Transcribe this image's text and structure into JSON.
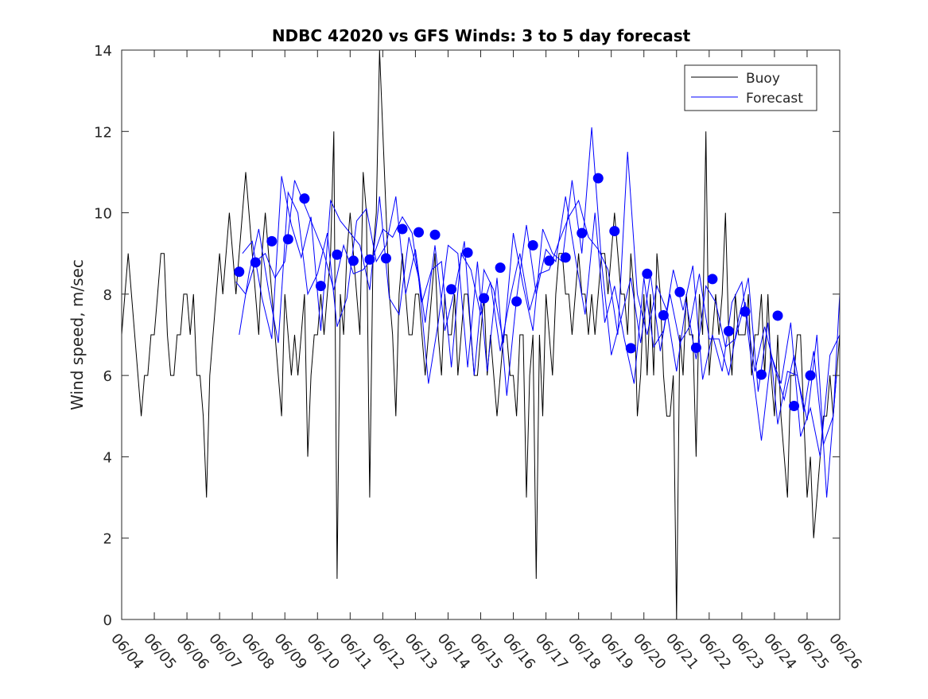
{
  "chart_data": {
    "type": "line",
    "title": "NDBC 42020 vs GFS Winds: 3 to 5 day forecast",
    "xlabel": "",
    "ylabel": "Wind speed, m/sec",
    "ylim": [
      0,
      14
    ],
    "yticks": [
      0,
      2,
      4,
      6,
      8,
      10,
      12,
      14
    ],
    "xlim": [
      "06/04",
      "06/26"
    ],
    "xticks": [
      "06/04",
      "06/05",
      "06/06",
      "06/07",
      "06/08",
      "06/09",
      "06/10",
      "06/11",
      "06/12",
      "06/13",
      "06/14",
      "06/15",
      "06/16",
      "06/17",
      "06/18",
      "06/19",
      "06/20",
      "06/21",
      "06/22",
      "06/23",
      "06/24",
      "06/25",
      "06/26"
    ],
    "grid": false,
    "legend": {
      "position": "top-right",
      "entries": [
        "Buoy",
        "Forecast"
      ]
    },
    "colors": {
      "buoy": "#000000",
      "forecast": "#0000ff",
      "axes": "#262626"
    },
    "series": [
      {
        "name": "Buoy",
        "x_days": [
          0.0,
          0.1,
          0.2,
          0.3,
          0.4,
          0.5,
          0.6,
          0.7,
          0.8,
          0.9,
          1.0,
          1.1,
          1.2,
          1.3,
          1.4,
          1.5,
          1.6,
          1.7,
          1.8,
          1.9,
          2.0,
          2.1,
          2.2,
          2.3,
          2.4,
          2.5,
          2.6,
          2.7,
          2.8,
          2.9,
          3.0,
          3.1,
          3.2,
          3.3,
          3.4,
          3.5,
          3.6,
          3.7,
          3.8,
          3.9,
          4.0,
          4.1,
          4.2,
          4.3,
          4.4,
          4.5,
          4.6,
          4.7,
          4.8,
          4.9,
          5.0,
          5.1,
          5.2,
          5.3,
          5.4,
          5.5,
          5.6,
          5.7,
          5.8,
          5.9,
          6.0,
          6.1,
          6.2,
          6.3,
          6.4,
          6.5,
          6.6,
          6.7,
          6.8,
          6.9,
          7.0,
          7.1,
          7.2,
          7.3,
          7.4,
          7.5,
          7.6,
          7.7,
          7.8,
          7.9,
          8.0,
          8.1,
          8.2,
          8.3,
          8.4,
          8.5,
          8.6,
          8.7,
          8.8,
          8.9,
          9.0,
          9.1,
          9.2,
          9.3,
          9.4,
          9.5,
          9.6,
          9.7,
          9.8,
          9.9,
          10.0,
          10.1,
          10.2,
          10.3,
          10.4,
          10.5,
          10.6,
          10.7,
          10.8,
          10.9,
          11.0,
          11.1,
          11.2,
          11.3,
          11.4,
          11.5,
          11.6,
          11.7,
          11.8,
          11.9,
          12.0,
          12.1,
          12.2,
          12.3,
          12.4,
          12.5,
          12.6,
          12.7,
          12.8,
          12.9,
          13.0,
          13.1,
          13.2,
          13.3,
          13.4,
          13.5,
          13.6,
          13.7,
          13.8,
          13.9,
          14.0,
          14.1,
          14.2,
          14.3,
          14.4,
          14.5,
          14.6,
          14.7,
          14.8,
          14.9,
          15.0,
          15.1,
          15.2,
          15.3,
          15.4,
          15.5,
          15.6,
          15.7,
          15.8,
          15.9,
          16.0,
          16.1,
          16.2,
          16.3,
          16.4,
          16.5,
          16.6,
          16.7,
          16.8,
          16.9,
          17.0,
          17.1,
          17.2,
          17.3,
          17.4,
          17.5,
          17.6,
          17.7,
          17.8,
          17.9,
          18.0,
          18.1,
          18.2,
          18.3,
          18.4,
          18.5,
          18.6,
          18.7,
          18.8,
          18.9,
          19.0,
          19.1,
          19.2,
          19.3,
          19.4,
          19.5,
          19.6,
          19.7,
          19.8,
          19.9,
          20.0,
          20.1,
          20.2,
          20.3,
          20.4,
          20.5,
          20.6,
          20.7,
          20.8,
          20.9,
          21.0,
          21.1,
          21.2,
          21.3,
          21.4,
          21.5,
          21.6,
          21.7,
          21.8,
          21.9,
          22.0
        ],
        "values": [
          7,
          8,
          9,
          8,
          7,
          6,
          5,
          6,
          6,
          7,
          7,
          8,
          9,
          9,
          7,
          6,
          6,
          7,
          7,
          8,
          8,
          7,
          8,
          6,
          6,
          5,
          3,
          6,
          7,
          8,
          9,
          8,
          9,
          10,
          9,
          8,
          9,
          10,
          11,
          10,
          9,
          8,
          7,
          9,
          10,
          9,
          8,
          7,
          6,
          5,
          8,
          7,
          6,
          7,
          6,
          7,
          8,
          4,
          6,
          7,
          7,
          8,
          7,
          8,
          9,
          12,
          1,
          8,
          7,
          9,
          10,
          9,
          8,
          7,
          11,
          10,
          3,
          9,
          10,
          14,
          12,
          10,
          8,
          7,
          5,
          8,
          9,
          8,
          7,
          7,
          8,
          8,
          7,
          6,
          7,
          8,
          9,
          7,
          6,
          8,
          7,
          7,
          8,
          6,
          7,
          8,
          8,
          7,
          6,
          6,
          7,
          8,
          6,
          7,
          6,
          5,
          6,
          7,
          7,
          6,
          6,
          5,
          7,
          7,
          3,
          6,
          7,
          1,
          7,
          5,
          8,
          7,
          6,
          8,
          9,
          9,
          8,
          8,
          7,
          8,
          9,
          8,
          8,
          7,
          8,
          7,
          8,
          9,
          9,
          8,
          9,
          10,
          9,
          8,
          8,
          7,
          9,
          8,
          5,
          6,
          8,
          6,
          8,
          6,
          9,
          8,
          6,
          5,
          5,
          6,
          0,
          7,
          6,
          8,
          7,
          7,
          4,
          8,
          7,
          12,
          6,
          7,
          8,
          7,
          8,
          10,
          7,
          6,
          8,
          7,
          7,
          7,
          8,
          6,
          7,
          7,
          8,
          6,
          8,
          6,
          5,
          7,
          5,
          4,
          3,
          6,
          6,
          7,
          7,
          5,
          3,
          4,
          2,
          3,
          4,
          5,
          5,
          6,
          5,
          6,
          7
        ]
      },
      {
        "name": "Forecast",
        "x_days": [
          3.5,
          3.8,
          4.1,
          4.4,
          4.7,
          5.0,
          5.3,
          5.6,
          5.9,
          6.2,
          6.5,
          6.8,
          7.1,
          7.4,
          7.7,
          8.0,
          8.3,
          8.6,
          8.9,
          9.2,
          9.5,
          9.8,
          10.1,
          10.4,
          10.7,
          11.0,
          11.3,
          11.6,
          11.9,
          12.2,
          12.5,
          12.8,
          13.1,
          13.4,
          13.7,
          14.0,
          14.3,
          14.6,
          14.9,
          15.2,
          15.5,
          15.8,
          16.1,
          16.4,
          16.7,
          17.0,
          17.3,
          17.6,
          17.9,
          18.2,
          18.5,
          18.8,
          19.1,
          19.4,
          19.7,
          20.0,
          20.3,
          20.6,
          20.9,
          21.2,
          21.5,
          21.8,
          22.0
        ],
        "values": [
          8.3,
          8.0,
          8.8,
          9.0,
          8.4,
          8.8,
          10.8,
          10.2,
          9.6,
          9.0,
          8.1,
          9.2,
          8.5,
          8.6,
          8.9,
          9.6,
          9.4,
          9.9,
          9.5,
          7.8,
          8.6,
          8.8,
          6.2,
          9.0,
          8.6,
          7.5,
          8.3,
          6.6,
          7.9,
          9.0,
          7.6,
          8.5,
          8.6,
          9.3,
          9.9,
          10.3,
          9.4,
          9.1,
          8.6,
          7.0,
          11.5,
          8.0,
          7.0,
          8.2,
          7.6,
          6.1,
          7.8,
          6.4,
          8.2,
          7.8,
          6.7,
          6.9,
          7.8,
          6.1,
          7.2,
          6.2,
          5.4,
          6.5,
          5.1,
          6.6,
          4.3,
          5.0,
          8.0
        ]
      },
      {
        "name": "",
        "x_days": [
          3.6,
          3.9,
          4.2,
          4.5,
          4.8,
          5.1,
          5.4,
          5.7,
          6.0,
          6.3,
          6.6,
          6.9,
          7.2,
          7.5,
          7.8,
          8.1,
          8.4,
          8.7,
          9.0,
          9.3,
          9.6,
          9.9,
          10.2,
          10.5,
          10.8,
          11.1,
          11.4,
          11.7,
          12.0,
          12.3,
          12.6,
          12.9,
          13.2,
          13.5,
          13.8,
          14.1,
          14.4,
          14.7,
          15.0,
          15.3,
          15.6,
          15.9,
          16.2,
          16.5,
          16.8,
          17.1,
          17.4,
          17.7,
          18.0,
          18.3,
          18.6,
          18.9,
          19.2,
          19.5,
          19.8,
          20.1,
          20.4,
          20.7,
          21.0,
          21.3,
          21.6,
          21.9
        ],
        "values": [
          7.0,
          8.5,
          9.6,
          8.1,
          6.8,
          10.5,
          10.0,
          8.0,
          8.5,
          9.5,
          7.2,
          7.9,
          9.8,
          10.1,
          8.8,
          9.2,
          10.4,
          8.0,
          9.1,
          7.3,
          9.2,
          7.1,
          8.1,
          9.3,
          6.0,
          8.6,
          8.1,
          6.8,
          9.5,
          8.2,
          7.1,
          9.6,
          9.0,
          8.8,
          10.8,
          9.0,
          12.1,
          8.8,
          6.5,
          7.4,
          8.4,
          6.8,
          8.5,
          6.6,
          8.0,
          6.8,
          7.2,
          8.5,
          6.9,
          6.9,
          6.0,
          7.4,
          8.4,
          5.6,
          7.3,
          4.8,
          6.1,
          6.0,
          4.9,
          7.0,
          3.0,
          6.0
        ]
      },
      {
        "name": "",
        "x_days": [
          3.7,
          4.0,
          4.3,
          4.6,
          4.9,
          5.2,
          5.5,
          5.8,
          6.1,
          6.4,
          6.7,
          7.0,
          7.3,
          7.6,
          7.9,
          8.2,
          8.5,
          8.8,
          9.1,
          9.4,
          9.7,
          10.0,
          10.3,
          10.6,
          10.9,
          11.2,
          11.5,
          11.8,
          12.1,
          12.4,
          12.7,
          13.0,
          13.3,
          13.6,
          13.9,
          14.2,
          14.5,
          14.8,
          15.1,
          15.4,
          15.7,
          16.0,
          16.3,
          16.6,
          16.9,
          17.2,
          17.5,
          17.8,
          18.1,
          18.4,
          18.7,
          19.0,
          19.3,
          19.6,
          19.9,
          20.2,
          20.5,
          20.8,
          21.1,
          21.4,
          21.7,
          22.0
        ],
        "values": [
          9.0,
          9.3,
          7.9,
          6.9,
          10.9,
          9.7,
          8.9,
          9.9,
          7.1,
          10.3,
          9.8,
          9.5,
          9.2,
          8.1,
          10.4,
          7.9,
          7.5,
          9.4,
          8.4,
          5.8,
          7.3,
          9.2,
          9.0,
          6.2,
          8.8,
          6.1,
          8.4,
          5.5,
          7.9,
          9.7,
          8.0,
          9.1,
          8.8,
          10.4,
          8.9,
          7.5,
          10.0,
          7.3,
          8.2,
          6.9,
          5.8,
          8.4,
          6.7,
          7.1,
          8.6,
          7.6,
          8.7,
          5.9,
          7.0,
          6.1,
          7.8,
          8.3,
          6.3,
          4.4,
          6.5,
          5.8,
          7.3,
          4.5,
          5.2,
          4.0,
          6.5,
          7.0
        ]
      }
    ],
    "markers": {
      "series": "Forecast",
      "x_days": [
        3.6,
        4.1,
        4.6,
        5.1,
        5.6,
        6.1,
        6.6,
        7.1,
        7.6,
        8.1,
        8.6,
        9.1,
        9.6,
        10.1,
        10.6,
        11.1,
        11.6,
        12.1,
        12.6,
        13.1,
        13.6,
        14.1,
        14.6,
        15.1,
        15.6,
        16.1,
        16.6,
        17.1,
        17.6,
        18.1,
        18.6,
        19.1,
        19.6,
        20.1,
        20.6,
        21.1
      ],
      "values": [
        8.55,
        8.78,
        9.3,
        9.35,
        10.35,
        8.2,
        8.97,
        8.82,
        8.85,
        8.88,
        9.6,
        9.52,
        9.46,
        8.12,
        9.02,
        7.9,
        8.65,
        7.82,
        9.2,
        8.82,
        8.9,
        9.5,
        10.85,
        9.55,
        6.67,
        8.5,
        7.48,
        8.05,
        6.68,
        8.37,
        7.09,
        7.57,
        6.02,
        7.47,
        5.25,
        6.0
      ]
    }
  }
}
